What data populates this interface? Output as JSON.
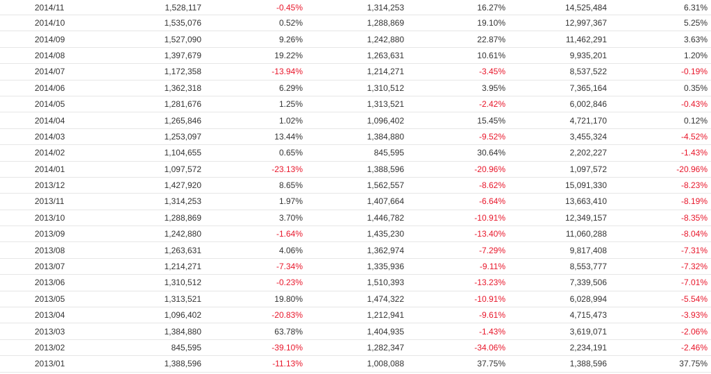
{
  "colors": {
    "text": "#333333",
    "negative": "#e8162a",
    "row_border": "#e6e6e6"
  },
  "rows": [
    {
      "month": "2014/11",
      "v1": "1,528,117",
      "p1": "-0.45%",
      "v2": "1,314,253",
      "p2": "16.27%",
      "v3": "14,525,484",
      "p3": "6.31%"
    },
    {
      "month": "2014/10",
      "v1": "1,535,076",
      "p1": "0.52%",
      "v2": "1,288,869",
      "p2": "19.10%",
      "v3": "12,997,367",
      "p3": "5.25%"
    },
    {
      "month": "2014/09",
      "v1": "1,527,090",
      "p1": "9.26%",
      "v2": "1,242,880",
      "p2": "22.87%",
      "v3": "11,462,291",
      "p3": "3.63%"
    },
    {
      "month": "2014/08",
      "v1": "1,397,679",
      "p1": "19.22%",
      "v2": "1,263,631",
      "p2": "10.61%",
      "v3": "9,935,201",
      "p3": "1.20%"
    },
    {
      "month": "2014/07",
      "v1": "1,172,358",
      "p1": "-13.94%",
      "v2": "1,214,271",
      "p2": "-3.45%",
      "v3": "8,537,522",
      "p3": "-0.19%"
    },
    {
      "month": "2014/06",
      "v1": "1,362,318",
      "p1": "6.29%",
      "v2": "1,310,512",
      "p2": "3.95%",
      "v3": "7,365,164",
      "p3": "0.35%"
    },
    {
      "month": "2014/05",
      "v1": "1,281,676",
      "p1": "1.25%",
      "v2": "1,313,521",
      "p2": "-2.42%",
      "v3": "6,002,846",
      "p3": "-0.43%"
    },
    {
      "month": "2014/04",
      "v1": "1,265,846",
      "p1": "1.02%",
      "v2": "1,096,402",
      "p2": "15.45%",
      "v3": "4,721,170",
      "p3": "0.12%"
    },
    {
      "month": "2014/03",
      "v1": "1,253,097",
      "p1": "13.44%",
      "v2": "1,384,880",
      "p2": "-9.52%",
      "v3": "3,455,324",
      "p3": "-4.52%"
    },
    {
      "month": "2014/02",
      "v1": "1,104,655",
      "p1": "0.65%",
      "v2": "845,595",
      "p2": "30.64%",
      "v3": "2,202,227",
      "p3": "-1.43%"
    },
    {
      "month": "2014/01",
      "v1": "1,097,572",
      "p1": "-23.13%",
      "v2": "1,388,596",
      "p2": "-20.96%",
      "v3": "1,097,572",
      "p3": "-20.96%"
    },
    {
      "month": "2013/12",
      "v1": "1,427,920",
      "p1": "8.65%",
      "v2": "1,562,557",
      "p2": "-8.62%",
      "v3": "15,091,330",
      "p3": "-8.23%"
    },
    {
      "month": "2013/11",
      "v1": "1,314,253",
      "p1": "1.97%",
      "v2": "1,407,664",
      "p2": "-6.64%",
      "v3": "13,663,410",
      "p3": "-8.19%"
    },
    {
      "month": "2013/10",
      "v1": "1,288,869",
      "p1": "3.70%",
      "v2": "1,446,782",
      "p2": "-10.91%",
      "v3": "12,349,157",
      "p3": "-8.35%"
    },
    {
      "month": "2013/09",
      "v1": "1,242,880",
      "p1": "-1.64%",
      "v2": "1,435,230",
      "p2": "-13.40%",
      "v3": "11,060,288",
      "p3": "-8.04%"
    },
    {
      "month": "2013/08",
      "v1": "1,263,631",
      "p1": "4.06%",
      "v2": "1,362,974",
      "p2": "-7.29%",
      "v3": "9,817,408",
      "p3": "-7.31%"
    },
    {
      "month": "2013/07",
      "v1": "1,214,271",
      "p1": "-7.34%",
      "v2": "1,335,936",
      "p2": "-9.11%",
      "v3": "8,553,777",
      "p3": "-7.32%"
    },
    {
      "month": "2013/06",
      "v1": "1,310,512",
      "p1": "-0.23%",
      "v2": "1,510,393",
      "p2": "-13.23%",
      "v3": "7,339,506",
      "p3": "-7.01%"
    },
    {
      "month": "2013/05",
      "v1": "1,313,521",
      "p1": "19.80%",
      "v2": "1,474,322",
      "p2": "-10.91%",
      "v3": "6,028,994",
      "p3": "-5.54%"
    },
    {
      "month": "2013/04",
      "v1": "1,096,402",
      "p1": "-20.83%",
      "v2": "1,212,941",
      "p2": "-9.61%",
      "v3": "4,715,473",
      "p3": "-3.93%"
    },
    {
      "month": "2013/03",
      "v1": "1,384,880",
      "p1": "63.78%",
      "v2": "1,404,935",
      "p2": "-1.43%",
      "v3": "3,619,071",
      "p3": "-2.06%"
    },
    {
      "month": "2013/02",
      "v1": "845,595",
      "p1": "-39.10%",
      "v2": "1,282,347",
      "p2": "-34.06%",
      "v3": "2,234,191",
      "p3": "-2.46%"
    },
    {
      "month": "2013/01",
      "v1": "1,388,596",
      "p1": "-11.13%",
      "v2": "1,008,088",
      "p2": "37.75%",
      "v3": "1,388,596",
      "p3": "37.75%"
    }
  ]
}
